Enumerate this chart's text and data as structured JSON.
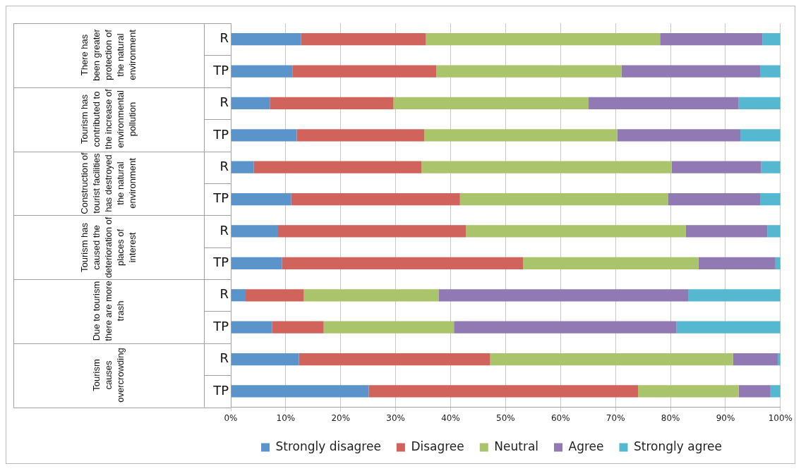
{
  "chart_data": {
    "type": "bar",
    "orientation": "horizontal",
    "stacked": true,
    "categories": [
      "R",
      "TP",
      "R",
      "TP",
      "R",
      "TP",
      "R",
      "TP",
      "R",
      "TP",
      "R",
      "TP"
    ],
    "series": [
      {
        "name": "Strongly disagree",
        "color": "#5b93cb",
        "values": [
          12.8,
          11.2,
          7.1,
          12.0,
          4.2,
          11.0,
          8.6,
          9.3,
          2.7,
          7.5,
          12.4,
          25.1
        ]
      },
      {
        "name": "Disagree",
        "color": "#d0635c",
        "values": [
          22.7,
          26.2,
          22.5,
          23.2,
          30.5,
          30.7,
          34.2,
          43.9,
          10.6,
          9.4,
          34.8,
          49.0
        ]
      },
      {
        "name": "Neutral",
        "color": "#a9c46b",
        "values": [
          42.6,
          33.7,
          35.5,
          35.1,
          45.5,
          37.9,
          40.0,
          31.9,
          24.5,
          23.7,
          44.2,
          18.3
        ]
      },
      {
        "name": "Agree",
        "color": "#9179b3",
        "values": [
          18.6,
          25.2,
          27.3,
          22.4,
          16.3,
          16.7,
          14.8,
          14.0,
          45.4,
          40.5,
          8.1,
          5.8
        ]
      },
      {
        "name": "Strongly agree",
        "color": "#56b7d0",
        "values": [
          3.3,
          3.7,
          7.6,
          7.3,
          3.5,
          3.7,
          2.4,
          0.9,
          16.8,
          18.9,
          0.5,
          1.8
        ]
      }
    ],
    "xlim": [
      0,
      100
    ],
    "xticks": [
      {
        "value": 0,
        "label": "0%"
      },
      {
        "value": 10,
        "label": "10%"
      },
      {
        "value": 20,
        "label": "20%"
      },
      {
        "value": 30,
        "label": "30%"
      },
      {
        "value": 40,
        "label": "40%"
      },
      {
        "value": 50,
        "label": "50%"
      },
      {
        "value": 60,
        "label": "60%"
      },
      {
        "value": 70,
        "label": "70%"
      },
      {
        "value": 80,
        "label": "80%"
      },
      {
        "value": 90,
        "label": "90%"
      },
      {
        "value": 100,
        "label": "100%"
      }
    ],
    "annotations": [
      "There has been greater protection of the natural environment",
      "Tourism has contributed to the increase of environmental pollution",
      "Construction of tourist facilities has destroyed the natural environment",
      "Tourism has caused the deterioration of places of interest",
      "Due to tourism there are more trash",
      "Tourism causes overcrowding"
    ],
    "grid": "x",
    "legend": "bottom"
  }
}
